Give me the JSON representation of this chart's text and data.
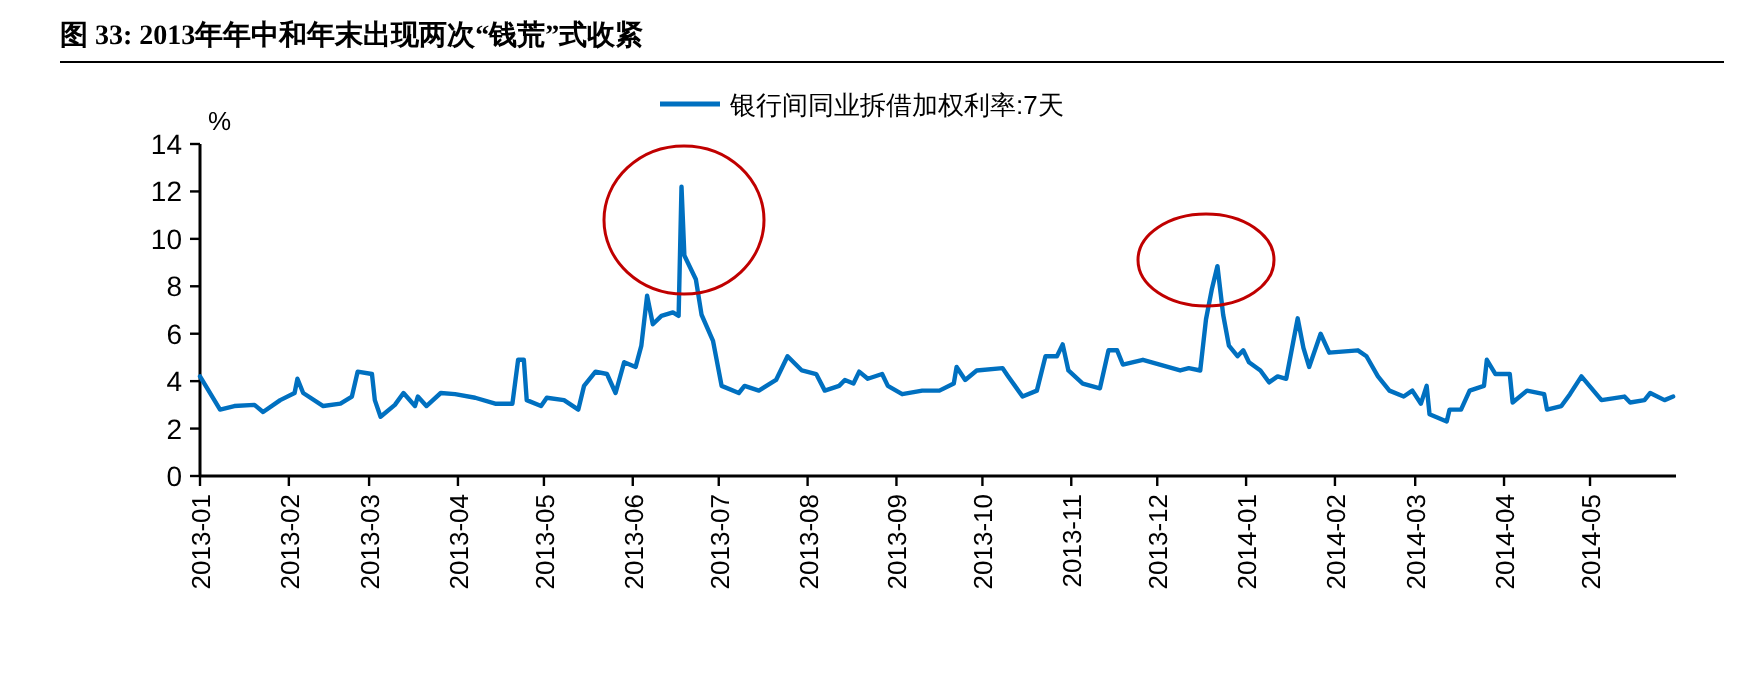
{
  "chart_data": {
    "type": "line",
    "title": "图 33:  2013年年中和年末出现两次“钱荒”式收紧",
    "ylabel": "%",
    "legend": "top",
    "grid": false,
    "marker": "none",
    "line_style": "solid",
    "xlim": [
      "2013-01-01",
      "2014-05-31"
    ],
    "xticks": [
      "2013-01",
      "2013-02",
      "2013-03",
      "2013-04",
      "2013-05",
      "2013-06",
      "2013-07",
      "2013-08",
      "2013-09",
      "2013-10",
      "2013-11",
      "2013-12",
      "2014-01",
      "2014-02",
      "2014-03",
      "2014-04",
      "2014-05"
    ],
    "ylim": [
      0,
      14
    ],
    "yticks": [
      0,
      2,
      4,
      6,
      8,
      10,
      12,
      14
    ],
    "x": [
      "2013-01-01",
      "2013-01-08",
      "2013-01-13",
      "2013-01-20",
      "2013-01-23",
      "2013-01-29",
      "2013-02-03",
      "2013-02-04",
      "2013-02-06",
      "2013-02-13",
      "2013-02-19",
      "2013-02-23",
      "2013-02-25",
      "2013-03-02",
      "2013-03-03",
      "2013-03-05",
      "2013-03-10",
      "2013-03-13",
      "2013-03-17",
      "2013-03-18",
      "2013-03-21",
      "2013-03-26",
      "2013-03-31",
      "2013-04-07",
      "2013-04-14",
      "2013-04-20",
      "2013-04-22",
      "2013-04-24",
      "2013-04-25",
      "2013-04-30",
      "2013-05-02",
      "2013-05-08",
      "2013-05-13",
      "2013-05-15",
      "2013-05-19",
      "2013-05-23",
      "2013-05-26",
      "2013-05-29",
      "2013-06-02",
      "2013-06-04",
      "2013-06-06",
      "2013-06-08",
      "2013-06-11",
      "2013-06-15",
      "2013-06-17",
      "2013-06-18",
      "2013-06-19",
      "2013-06-23",
      "2013-06-25",
      "2013-06-29",
      "2013-07-02",
      "2013-07-08",
      "2013-07-10",
      "2013-07-15",
      "2013-07-21",
      "2013-07-25",
      "2013-07-30",
      "2013-08-04",
      "2013-08-07",
      "2013-08-12",
      "2013-08-14",
      "2013-08-17",
      "2013-08-19",
      "2013-08-22",
      "2013-08-27",
      "2013-08-29",
      "2013-09-03",
      "2013-09-10",
      "2013-09-16",
      "2013-09-21",
      "2013-09-22",
      "2013-09-25",
      "2013-09-29",
      "2013-10-08",
      "2013-10-10",
      "2013-10-15",
      "2013-10-20",
      "2013-10-23",
      "2013-10-27",
      "2013-10-29",
      "2013-10-31",
      "2013-11-05",
      "2013-11-11",
      "2013-11-14",
      "2013-11-17",
      "2013-11-19",
      "2013-11-26",
      "2013-12-09",
      "2013-12-12",
      "2013-12-16",
      "2013-12-18",
      "2013-12-20",
      "2013-12-22",
      "2013-12-24",
      "2013-12-26",
      "2013-12-29",
      "2013-12-31",
      "2014-01-02",
      "2014-01-06",
      "2014-01-09",
      "2014-01-12",
      "2014-01-15",
      "2014-01-19",
      "2014-01-21",
      "2014-01-23",
      "2014-01-27",
      "2014-01-30",
      "2014-02-09",
      "2014-02-12",
      "2014-02-16",
      "2014-02-20",
      "2014-02-25",
      "2014-02-28",
      "2014-03-03",
      "2014-03-05",
      "2014-03-06",
      "2014-03-12",
      "2014-03-13",
      "2014-03-17",
      "2014-03-20",
      "2014-03-25",
      "2014-03-26",
      "2014-03-29",
      "2014-04-03",
      "2014-04-04",
      "2014-04-09",
      "2014-04-15",
      "2014-04-16",
      "2014-04-21",
      "2014-04-24",
      "2014-04-28",
      "2014-05-05",
      "2014-05-13",
      "2014-05-15",
      "2014-05-20",
      "2014-05-22",
      "2014-05-27",
      "2014-05-30"
    ],
    "series": [
      {
        "name": "银行间同业拆借加权利率:7天",
        "color": "#0070c0",
        "values": [
          4.2,
          2.8,
          2.95,
          3.0,
          2.7,
          3.2,
          3.5,
          4.1,
          3.5,
          2.95,
          3.05,
          3.35,
          4.4,
          4.3,
          3.2,
          2.5,
          3.0,
          3.5,
          2.95,
          3.35,
          2.95,
          3.5,
          3.45,
          3.3,
          3.05,
          3.05,
          4.9,
          4.9,
          3.2,
          2.95,
          3.3,
          3.2,
          2.8,
          3.8,
          4.4,
          4.3,
          3.5,
          4.8,
          4.6,
          5.5,
          7.6,
          6.4,
          6.75,
          6.9,
          6.75,
          12.2,
          9.3,
          8.3,
          6.8,
          5.7,
          3.8,
          3.5,
          3.8,
          3.6,
          4.05,
          5.05,
          4.45,
          4.3,
          3.6,
          3.8,
          4.05,
          3.9,
          4.4,
          4.1,
          4.3,
          3.8,
          3.45,
          3.6,
          3.6,
          3.9,
          4.6,
          4.05,
          4.45,
          4.55,
          4.2,
          3.35,
          3.6,
          5.05,
          5.05,
          5.55,
          4.45,
          3.9,
          3.7,
          5.3,
          5.3,
          4.7,
          4.9,
          4.45,
          4.55,
          4.45,
          6.6,
          7.85,
          8.85,
          6.8,
          5.5,
          5.05,
          5.3,
          4.8,
          4.45,
          3.95,
          4.2,
          4.1,
          6.65,
          5.4,
          4.6,
          6.0,
          5.2,
          5.3,
          5.05,
          4.2,
          3.6,
          3.35,
          3.6,
          3.05,
          3.8,
          2.6,
          2.3,
          2.8,
          2.8,
          3.6,
          3.8,
          4.9,
          4.3,
          4.3,
          3.1,
          3.6,
          3.45,
          2.8,
          2.95,
          3.45,
          4.2,
          3.2,
          3.35,
          3.1,
          3.2,
          3.5,
          3.2,
          3.35
        ]
      }
    ]
  }
}
